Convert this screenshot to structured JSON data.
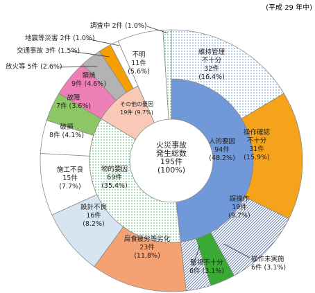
{
  "note": "(平成 29 年中)",
  "chart_data": {
    "type": "nested-donut",
    "center": {
      "title": "火災事故発生総数",
      "value": 195,
      "value_label": "195件",
      "share_label": "(100%)"
    },
    "inner": {
      "categories": [
        "人的要因",
        "物的要因",
        "その他の要因"
      ],
      "values": [
        94,
        69,
        19
      ],
      "value_labels": [
        "94件",
        "69件",
        "19件"
      ],
      "share_labels": [
        "(48.2%)",
        "(35.4%)",
        "(9.7%)"
      ],
      "colors": [
        "#7198d8",
        "#3fae6a",
        "#f9c8b6"
      ],
      "patterns": [
        null,
        "dots",
        null
      ]
    },
    "outer": {
      "categories": [
        "維持管理不十分",
        "操作確認不十分",
        "誤操作",
        "操作未実施",
        "監視不十分",
        "腐食疲労等劣化",
        "設計不良",
        "施工不良",
        "破損",
        "故障",
        "類焼",
        "放火等",
        "交通事故",
        "地震等災害",
        "不明",
        "調査中"
      ],
      "values": [
        32,
        31,
        19,
        6,
        6,
        23,
        16,
        15,
        8,
        7,
        9,
        5,
        3,
        2,
        11,
        2
      ],
      "value_labels": [
        "32件",
        "31件",
        "19件",
        "6件",
        "6件",
        "23件",
        "16件",
        "15件",
        "8件",
        "7件",
        "9件",
        "5件",
        "3件",
        "2件",
        "11件",
        "2件"
      ],
      "share_labels": [
        "(16.4%)",
        "(15.9%)",
        "(9.7%)",
        "(3.1%)",
        "(3.1%)",
        "(11.8%)",
        "(8.2%)",
        "(7.7%)",
        "(4.1%)",
        "(3.6%)",
        "(4.6%)",
        "(2.6%)",
        "(1.5%)",
        "(1.0%)",
        "(5.6%)",
        "(1.0%)"
      ],
      "colors": [
        "#5b8fd6",
        "#f5a31a",
        "#4a78c8",
        "#3aa935",
        "#4a78c8",
        "#f4a274",
        "#d7e4f2",
        "#ffffff",
        "#ffffff",
        "#8cc665",
        "#ee7fb6",
        "#b3b3b3",
        "#f5a000",
        "#ffffff",
        "#ffffff",
        "#3fae6a"
      ],
      "patterns": [
        "dots",
        null,
        "hatch",
        null,
        "hatch",
        null,
        null,
        null,
        null,
        null,
        null,
        null,
        null,
        null,
        null,
        "dots"
      ],
      "spans_both_rings": [
        false,
        false,
        false,
        false,
        false,
        false,
        false,
        false,
        false,
        false,
        false,
        false,
        false,
        false,
        true,
        true
      ]
    }
  }
}
